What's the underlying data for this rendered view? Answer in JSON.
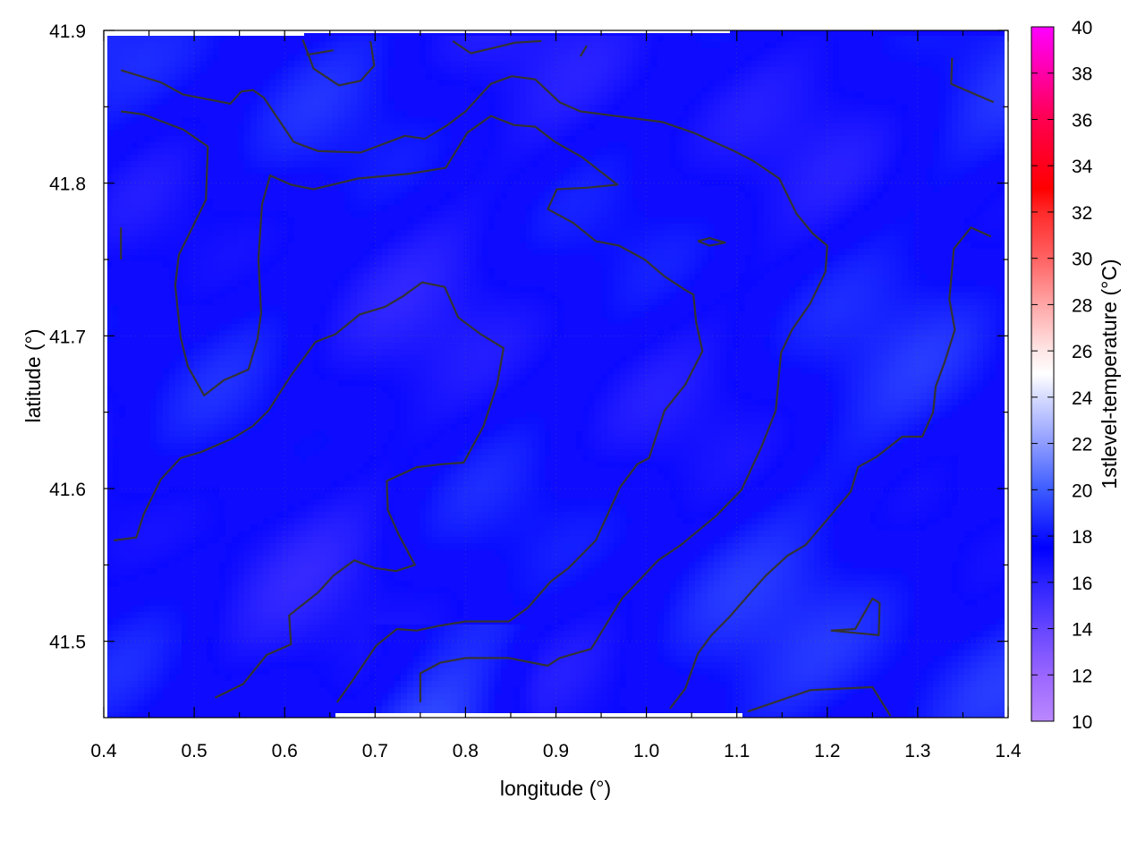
{
  "chart_data": {
    "type": "heatmap",
    "title": "",
    "xlabel": "longitude (°)",
    "ylabel": "latitude (°)",
    "colorbar_label": "1stlevel-temperature (°C)",
    "xlim": [
      0.4,
      1.4
    ],
    "ylim": [
      41.45,
      41.9
    ],
    "x_ticks": [
      "0.4",
      "0.5",
      "0.6",
      "0.7",
      "0.8",
      "0.9",
      "1.0",
      "1.1",
      "1.2",
      "1.3",
      "1.4"
    ],
    "y_ticks": [
      "41.5",
      "41.6",
      "41.7",
      "41.8",
      "41.9"
    ],
    "colorbar_range": [
      10,
      40
    ],
    "colorbar_ticks": [
      "10",
      "12",
      "14",
      "16",
      "18",
      "20",
      "22",
      "24",
      "26",
      "28",
      "30",
      "32",
      "34",
      "36",
      "38",
      "40"
    ],
    "colormap": [
      {
        "value": 10,
        "color": "#bb88ff"
      },
      {
        "value": 12,
        "color": "#9a66ff"
      },
      {
        "value": 14,
        "color": "#6646ff"
      },
      {
        "value": 16,
        "color": "#2a22ff"
      },
      {
        "value": 17.5,
        "color": "#0000ff"
      },
      {
        "value": 20,
        "color": "#3d5cff"
      },
      {
        "value": 22,
        "color": "#8e9cff"
      },
      {
        "value": 24,
        "color": "#d6dbff"
      },
      {
        "value": 25,
        "color": "#ffffff"
      },
      {
        "value": 26,
        "color": "#ffe6e6"
      },
      {
        "value": 28,
        "color": "#ffa6a6"
      },
      {
        "value": 30,
        "color": "#ff6262"
      },
      {
        "value": 32,
        "color": "#ff2a2a"
      },
      {
        "value": 33,
        "color": "#ff0000"
      },
      {
        "value": 36,
        "color": "#ff0050"
      },
      {
        "value": 40,
        "color": "#ff00ff"
      }
    ],
    "field_typical_value": 17,
    "grid": true,
    "contour_color": "#333333",
    "contours": [
      [
        [
          0.419,
          41.874
        ],
        [
          0.463,
          41.866
        ],
        [
          0.488,
          41.858
        ],
        [
          0.54,
          41.852
        ],
        [
          0.552,
          41.86
        ],
        [
          0.565,
          41.861
        ],
        [
          0.577,
          41.856
        ],
        [
          0.61,
          41.827
        ],
        [
          0.637,
          41.821
        ],
        [
          0.684,
          41.82
        ],
        [
          0.733,
          41.831
        ],
        [
          0.755,
          41.829
        ],
        [
          0.78,
          41.838
        ],
        [
          0.8,
          41.847
        ],
        [
          0.828,
          41.865
        ],
        [
          0.851,
          41.87
        ],
        [
          0.877,
          41.868
        ],
        [
          0.904,
          41.853
        ],
        [
          0.927,
          41.847
        ],
        [
          1.018,
          41.84
        ],
        [
          1.052,
          41.833
        ],
        [
          1.097,
          41.821
        ],
        [
          1.117,
          41.815
        ],
        [
          1.147,
          41.803
        ],
        [
          1.166,
          41.78
        ],
        [
          1.184,
          41.767
        ],
        [
          1.2,
          41.759
        ],
        [
          1.198,
          41.742
        ],
        [
          1.181,
          41.721
        ],
        [
          1.161,
          41.704
        ],
        [
          1.149,
          41.689
        ],
        [
          1.143,
          41.651
        ],
        [
          1.127,
          41.627
        ],
        [
          1.105,
          41.599
        ],
        [
          1.077,
          41.582
        ],
        [
          1.038,
          41.563
        ],
        [
          1.013,
          41.553
        ],
        [
          0.973,
          41.528
        ],
        [
          0.939,
          41.495
        ],
        [
          0.904,
          41.489
        ],
        [
          0.891,
          41.484
        ],
        [
          0.848,
          41.489
        ],
        [
          0.8,
          41.489
        ],
        [
          0.772,
          41.486
        ],
        [
          0.75,
          41.479
        ],
        [
          0.75,
          41.46
        ]
      ],
      [
        [
          0.419,
          41.847
        ],
        [
          0.444,
          41.845
        ],
        [
          0.488,
          41.835
        ],
        [
          0.515,
          41.824
        ],
        [
          0.513,
          41.789
        ],
        [
          0.498,
          41.771
        ],
        [
          0.483,
          41.753
        ],
        [
          0.479,
          41.733
        ],
        [
          0.485,
          41.699
        ],
        [
          0.493,
          41.68
        ],
        [
          0.511,
          41.661
        ],
        [
          0.533,
          41.671
        ],
        [
          0.56,
          41.678
        ],
        [
          0.57,
          41.698
        ],
        [
          0.574,
          41.715
        ],
        [
          0.571,
          41.75
        ],
        [
          0.575,
          41.786
        ],
        [
          0.584,
          41.805
        ],
        [
          0.607,
          41.799
        ],
        [
          0.632,
          41.796
        ],
        [
          0.681,
          41.803
        ],
        [
          0.736,
          41.806
        ],
        [
          0.778,
          41.81
        ],
        [
          0.802,
          41.833
        ],
        [
          0.828,
          41.844
        ],
        [
          0.854,
          41.838
        ],
        [
          0.877,
          41.837
        ],
        [
          0.899,
          41.827
        ],
        [
          0.929,
          41.817
        ],
        [
          0.968,
          41.799
        ],
        [
          0.934,
          41.797
        ],
        [
          0.901,
          41.796
        ],
        [
          0.891,
          41.783
        ],
        [
          0.919,
          41.774
        ],
        [
          0.944,
          41.762
        ],
        [
          0.97,
          41.759
        ],
        [
          0.998,
          41.75
        ],
        [
          1.02,
          41.739
        ],
        [
          1.043,
          41.73
        ],
        [
          1.052,
          41.727
        ],
        [
          1.055,
          41.709
        ],
        [
          1.062,
          41.69
        ],
        [
          1.043,
          41.668
        ],
        [
          1.02,
          41.651
        ],
        [
          1.003,
          41.62
        ],
        [
          0.99,
          41.616
        ],
        [
          0.971,
          41.601
        ],
        [
          0.944,
          41.566
        ],
        [
          0.914,
          41.548
        ],
        [
          0.894,
          41.539
        ],
        [
          0.869,
          41.522
        ],
        [
          0.848,
          41.513
        ],
        [
          0.8,
          41.513
        ],
        [
          0.77,
          41.51
        ],
        [
          0.746,
          41.507
        ],
        [
          0.724,
          41.508
        ],
        [
          0.701,
          41.497
        ],
        [
          0.676,
          41.475
        ],
        [
          0.658,
          41.46
        ]
      ],
      [
        [
          0.411,
          41.566
        ],
        [
          0.436,
          41.568
        ],
        [
          0.444,
          41.583
        ],
        [
          0.463,
          41.606
        ],
        [
          0.485,
          41.62
        ],
        [
          0.508,
          41.624
        ],
        [
          0.543,
          41.633
        ],
        [
          0.565,
          41.641
        ],
        [
          0.582,
          41.651
        ],
        [
          0.607,
          41.674
        ],
        [
          0.634,
          41.696
        ],
        [
          0.656,
          41.701
        ],
        [
          0.683,
          41.714
        ],
        [
          0.711,
          41.719
        ],
        [
          0.731,
          41.726
        ],
        [
          0.752,
          41.735
        ],
        [
          0.777,
          41.732
        ],
        [
          0.792,
          41.712
        ],
        [
          0.817,
          41.701
        ],
        [
          0.842,
          41.692
        ],
        [
          0.835,
          41.668
        ],
        [
          0.82,
          41.641
        ],
        [
          0.798,
          41.617
        ],
        [
          0.775,
          41.616
        ],
        [
          0.746,
          41.614
        ],
        [
          0.713,
          41.605
        ],
        [
          0.714,
          41.586
        ],
        [
          0.726,
          41.57
        ],
        [
          0.744,
          41.55
        ],
        [
          0.723,
          41.546
        ],
        [
          0.699,
          41.548
        ],
        [
          0.677,
          41.553
        ],
        [
          0.654,
          41.543
        ],
        [
          0.637,
          41.532
        ],
        [
          0.605,
          41.517
        ],
        [
          0.607,
          41.498
        ],
        [
          0.58,
          41.491
        ],
        [
          0.554,
          41.472
        ],
        [
          0.523,
          41.463
        ]
      ],
      [
        [
          1.381,
          41.765
        ],
        [
          1.359,
          41.771
        ],
        [
          1.34,
          41.757
        ],
        [
          1.335,
          41.724
        ],
        [
          1.341,
          41.704
        ],
        [
          1.33,
          41.683
        ],
        [
          1.32,
          41.667
        ],
        [
          1.317,
          41.65
        ],
        [
          1.305,
          41.634
        ],
        [
          1.283,
          41.634
        ],
        [
          1.255,
          41.621
        ],
        [
          1.234,
          41.614
        ],
        [
          1.226,
          41.598
        ],
        [
          1.196,
          41.577
        ],
        [
          1.176,
          41.563
        ],
        [
          1.156,
          41.556
        ],
        [
          1.132,
          41.543
        ],
        [
          1.117,
          41.533
        ],
        [
          1.092,
          41.516
        ],
        [
          1.072,
          41.504
        ],
        [
          1.057,
          41.492
        ],
        [
          1.043,
          41.469
        ],
        [
          1.026,
          41.456
        ]
      ],
      [
        [
          0.62,
          41.894
        ],
        [
          0.632,
          41.875
        ],
        [
          0.66,
          41.864
        ],
        [
          0.684,
          41.867
        ],
        [
          0.699,
          41.877
        ],
        [
          0.695,
          41.893
        ]
      ],
      [
        [
          0.786,
          41.893
        ],
        [
          0.806,
          41.885
        ],
        [
          0.855,
          41.892
        ],
        [
          0.884,
          41.893
        ]
      ],
      [
        [
          0.927,
          41.883
        ],
        [
          0.934,
          41.89
        ]
      ],
      [
        [
          0.624,
          41.884
        ],
        [
          0.654,
          41.887
        ]
      ],
      [
        [
          1.338,
          41.882
        ],
        [
          1.337,
          41.865
        ],
        [
          1.384,
          41.853
        ]
      ],
      [
        [
          1.112,
          41.454
        ],
        [
          1.181,
          41.468
        ],
        [
          1.25,
          41.47
        ],
        [
          1.27,
          41.451
        ]
      ],
      [
        [
          1.204,
          41.507
        ],
        [
          1.231,
          41.508
        ],
        [
          1.25,
          41.528
        ],
        [
          1.258,
          41.525
        ],
        [
          1.257,
          41.504
        ],
        [
          1.204,
          41.507
        ]
      ],
      [
        [
          1.057,
          41.762
        ],
        [
          1.07,
          41.764
        ],
        [
          1.087,
          41.761
        ],
        [
          1.07,
          41.759
        ],
        [
          1.057,
          41.762
        ]
      ],
      [
        [
          0.419,
          41.771
        ],
        [
          0.419,
          41.75
        ]
      ]
    ]
  }
}
